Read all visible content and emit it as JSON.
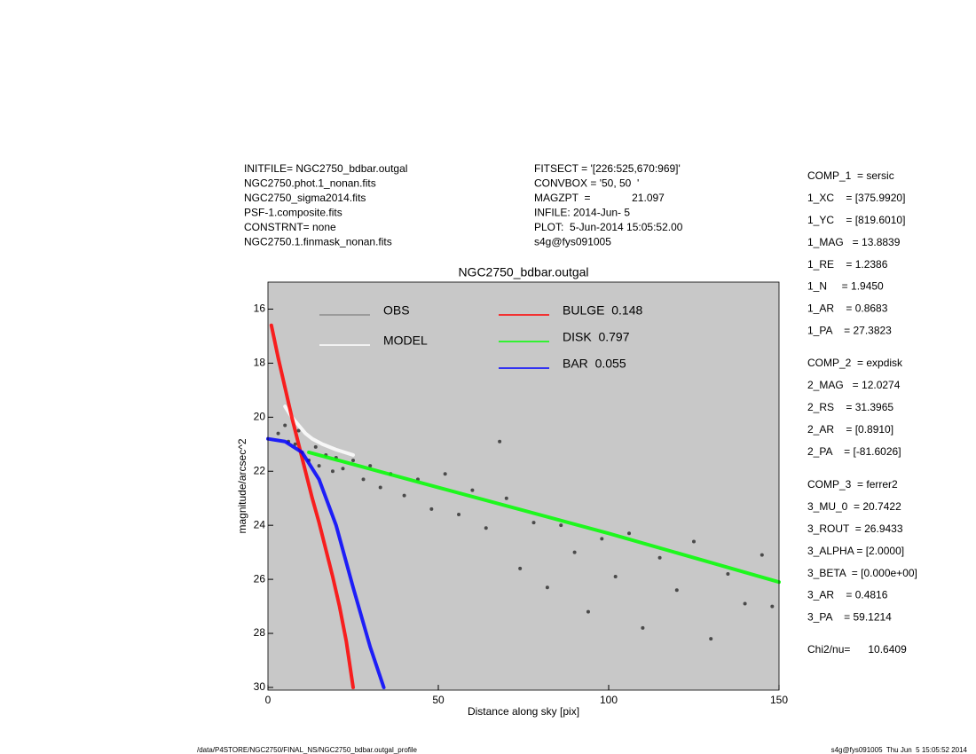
{
  "header": {
    "left": [
      "INITFILE= NGC2750_bdbar.outgal",
      "NGC2750.phot.1_nonan.fits",
      "NGC2750_sigma2014.fits",
      "PSF-1.composite.fits",
      "CONSTRNT= none",
      "NGC2750.1.finmask_nonan.fits"
    ],
    "middle": [
      "FITSECT = '[226:525,670:969]'",
      "CONVBOX = '50, 50  '",
      "MAGZPT  =              21.097",
      "INFILE: 2014-Jun- 5",
      "PLOT:  5-Jun-2014 15:05:52.00",
      "s4g@fys091005"
    ]
  },
  "fit_params": [
    [
      "COMP_1  = sersic",
      "1_XC    = [375.9920]",
      "1_YC    = [819.6010]",
      "1_MAG   = 13.8839",
      "1_RE    = 1.2386",
      "1_N     = 1.9450",
      "1_AR    = 0.8683",
      "1_PA    = 27.3823"
    ],
    [
      "COMP_2  = expdisk",
      "2_MAG   = 12.0274",
      "2_RS    = 31.3965",
      "2_AR    = [0.8910]",
      "2_PA    = [-81.6026]"
    ],
    [
      "COMP_3  = ferrer2",
      "3_MU_0  = 20.7422",
      "3_ROUT  = 26.9433",
      "3_ALPHA = [2.0000]",
      "3_BETA  = [0.000e+00]",
      "3_AR    = 0.4816",
      "3_PA    = 59.1214"
    ],
    [
      "Chi2/nu=      10.6409"
    ]
  ],
  "footer": {
    "left": "/data/P4STORE/NGC2750/FINAL_NS/NGC2750_bdbar.outgal_profile",
    "right": "s4g@fys091005  Thu Jun  5 15:05:52 2014"
  },
  "chart_data": {
    "type": "scatter",
    "title": "NGC2750_bdbar.outgal",
    "x_label": "Distance along sky [pix]",
    "y_label": "magnitude/arcsec^2",
    "xlim": [
      0,
      150
    ],
    "xticks": [
      0,
      50,
      100,
      150
    ],
    "ylim": [
      30.1,
      15
    ],
    "yticks": [
      16,
      18,
      20,
      22,
      24,
      26,
      28,
      30
    ],
    "plot_color": "#c8c8c8",
    "series": [
      {
        "name": "OBS",
        "color": "#4a4a4a",
        "legend_color": "#8c8c8c",
        "style": "points",
        "x": [
          3,
          5,
          6,
          8,
          9,
          10,
          12,
          14,
          15,
          17,
          19,
          20,
          22,
          25,
          28,
          30,
          33,
          36,
          40,
          44,
          48,
          52,
          56,
          60,
          64,
          68,
          70,
          74,
          78,
          82,
          86,
          90,
          94,
          98,
          102,
          106,
          110,
          115,
          120,
          125,
          130,
          135,
          140,
          145,
          148
        ],
        "values": [
          20.6,
          20.3,
          20.9,
          21.0,
          20.5,
          21.3,
          21.6,
          21.1,
          21.8,
          21.4,
          22.0,
          21.5,
          21.9,
          21.6,
          22.3,
          21.8,
          22.6,
          22.1,
          22.9,
          22.3,
          23.4,
          22.1,
          23.6,
          22.7,
          24.1,
          20.9,
          23.0,
          25.6,
          23.9,
          26.3,
          24.0,
          25.0,
          27.2,
          24.5,
          25.9,
          24.3,
          27.8,
          25.2,
          26.4,
          24.6,
          28.2,
          25.8,
          26.9,
          25.1,
          27.0
        ]
      },
      {
        "name": "MODEL",
        "color": "#ffffff",
        "legend_color": "#ffffff",
        "style": "line",
        "x": [
          5,
          7,
          9,
          11,
          13,
          16,
          20,
          25
        ],
        "values": [
          19.6,
          20.0,
          20.3,
          20.6,
          20.8,
          21.0,
          21.2,
          21.4
        ]
      },
      {
        "name": "BULGE  0.148",
        "color": "#ff0000",
        "legend_color": "#ff0000",
        "style": "line",
        "x": [
          1,
          3,
          5,
          7,
          9,
          11,
          13,
          15,
          17,
          19,
          21,
          23,
          25
        ],
        "values": [
          16.6,
          17.8,
          18.9,
          20.0,
          21.0,
          22.0,
          23.0,
          23.9,
          24.9,
          25.9,
          27.0,
          28.3,
          30.0
        ]
      },
      {
        "name": "DISK  0.797",
        "color": "#00ff00",
        "legend_color": "#00ff00",
        "style": "line",
        "x": [
          12,
          50,
          100,
          150
        ],
        "values": [
          21.3,
          22.6,
          24.3,
          26.1
        ]
      },
      {
        "name": "BAR  0.055",
        "color": "#0000ff",
        "legend_color": "#0000ff",
        "style": "line",
        "x": [
          0,
          5,
          10,
          15,
          20,
          25,
          30,
          34
        ],
        "values": [
          20.8,
          20.9,
          21.3,
          22.3,
          24.0,
          26.3,
          28.5,
          30.0
        ]
      }
    ]
  }
}
